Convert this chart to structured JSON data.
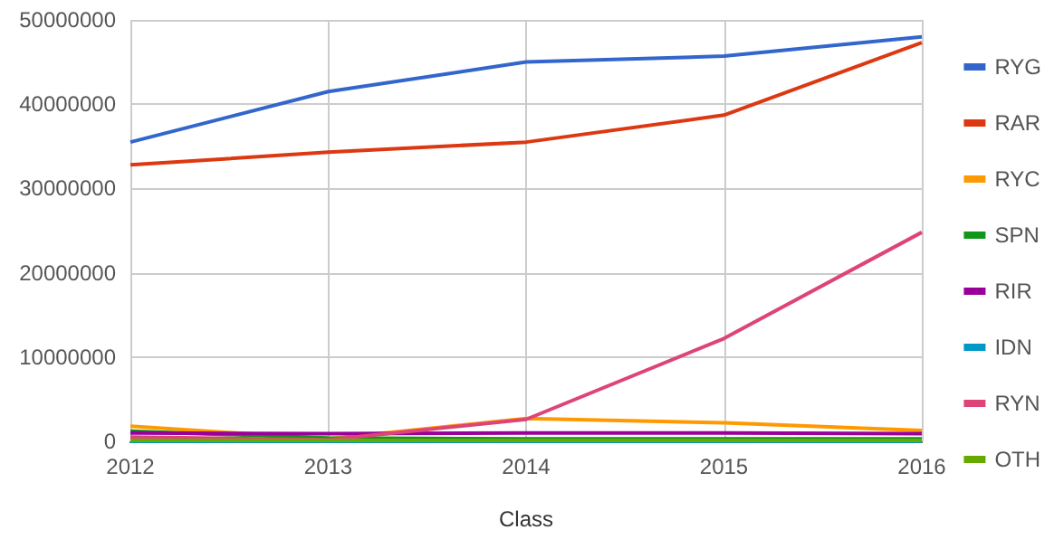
{
  "chart_data": {
    "type": "line",
    "xlabel": "Class",
    "categories": [
      "2012",
      "2013",
      "2014",
      "2015",
      "2016"
    ],
    "series": [
      {
        "name": "RYG",
        "color": "#3366cc",
        "values": [
          35500000,
          41500000,
          45000000,
          45700000,
          48000000
        ]
      },
      {
        "name": "RAR",
        "color": "#dc3912",
        "values": [
          32800000,
          34300000,
          35500000,
          38700000,
          47300000
        ]
      },
      {
        "name": "RYC",
        "color": "#ff9900",
        "values": [
          1800000,
          300000,
          2700000,
          2200000,
          1300000
        ]
      },
      {
        "name": "SPN",
        "color": "#109618",
        "values": [
          1200000,
          400000,
          300000,
          300000,
          300000
        ]
      },
      {
        "name": "RIR",
        "color": "#990099",
        "values": [
          1000000,
          900000,
          1000000,
          1000000,
          900000
        ]
      },
      {
        "name": "IDN",
        "color": "#0099c6",
        "values": [
          0,
          0,
          0,
          0,
          0
        ]
      },
      {
        "name": "RYN",
        "color": "#dd4477",
        "values": [
          500000,
          200000,
          2600000,
          12200000,
          24800000
        ]
      },
      {
        "name": "OTH",
        "color": "#66aa00",
        "values": [
          100000,
          100000,
          100000,
          100000,
          100000
        ]
      }
    ],
    "ylim": [
      0,
      50000000
    ],
    "yticks": [
      0,
      10000000,
      20000000,
      30000000,
      40000000,
      50000000
    ],
    "grid": true,
    "legend": "right",
    "marker": "none",
    "line_style": "solid"
  }
}
